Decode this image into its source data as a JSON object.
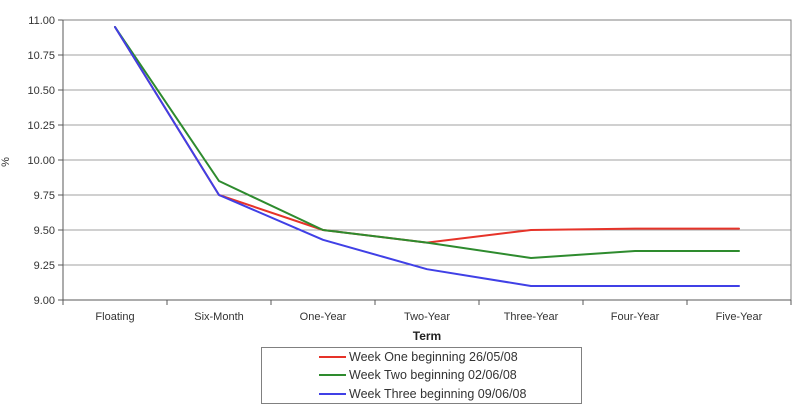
{
  "chart_data": {
    "type": "line",
    "title": "",
    "xlabel": "Term",
    "ylabel": "%",
    "categories": [
      "Floating",
      "Six-Month",
      "One-Year",
      "Two-Year",
      "Three-Year",
      "Four-Year",
      "Five-Year"
    ],
    "series": [
      {
        "name": "Week One beginning 26/05/08",
        "color": "#e63329",
        "values": [
          10.95,
          9.75,
          9.5,
          9.41,
          9.5,
          9.51,
          9.51
        ]
      },
      {
        "name": "Week Two beginning 02/06/08",
        "color": "#2e8b2e",
        "values": [
          10.95,
          9.85,
          9.5,
          9.41,
          9.3,
          9.35,
          9.35
        ]
      },
      {
        "name": "Week Three beginning 09/06/08",
        "color": "#4040e6",
        "values": [
          10.95,
          9.75,
          9.43,
          9.22,
          9.1,
          9.1,
          9.1
        ]
      }
    ],
    "ylim": [
      9.0,
      11.0
    ],
    "y_tick_step": 0.25,
    "y_tick_labels": [
      "9.00",
      "9.25",
      "9.50",
      "9.75",
      "10.00",
      "10.25",
      "10.50",
      "10.75",
      "11.00"
    ],
    "grid": true,
    "legend_position": "bottom",
    "colors": {
      "gridline": "#a0a0a0",
      "plot_border": "#808080",
      "axis_line": "#595959",
      "text": "#333333"
    }
  }
}
